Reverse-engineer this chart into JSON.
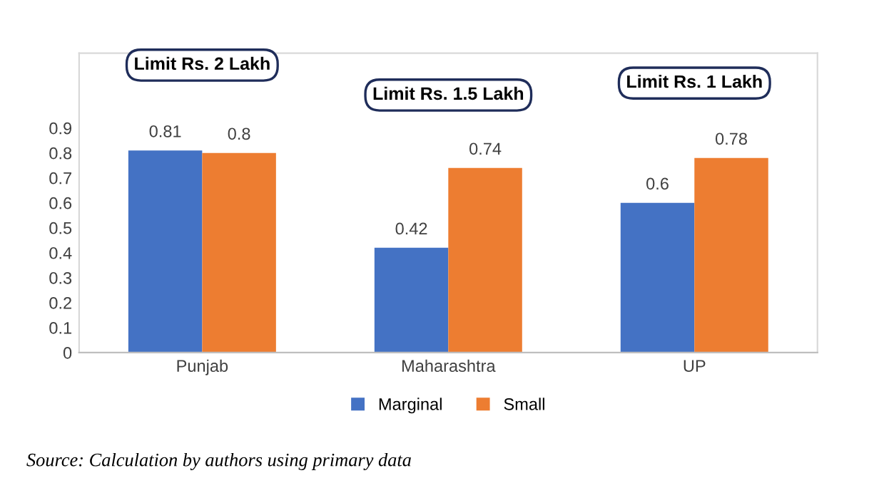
{
  "chart_data": {
    "type": "bar",
    "categories": [
      "Punjab",
      "Maharashtra",
      "UP"
    ],
    "series": [
      {
        "name": "Marginal",
        "color": "#4472c4",
        "values": [
          0.81,
          0.42,
          0.6
        ]
      },
      {
        "name": "Small",
        "color": "#ed7d31",
        "values": [
          0.8,
          0.74,
          0.78
        ]
      }
    ],
    "ylim": [
      0,
      1.2
    ],
    "yticks": [
      0,
      0.1,
      0.2,
      0.3,
      0.4,
      0.5,
      0.6,
      0.7,
      0.8,
      0.9
    ],
    "data_labels": true,
    "legend": "bottom",
    "grid": false,
    "annotations": [
      "Limit Rs. 2 Lakh",
      "Limit Rs. 1.5 Lakh",
      "Limit Rs. 1 Lakh",
      "Source: Calculation by authors using primary data"
    ]
  }
}
